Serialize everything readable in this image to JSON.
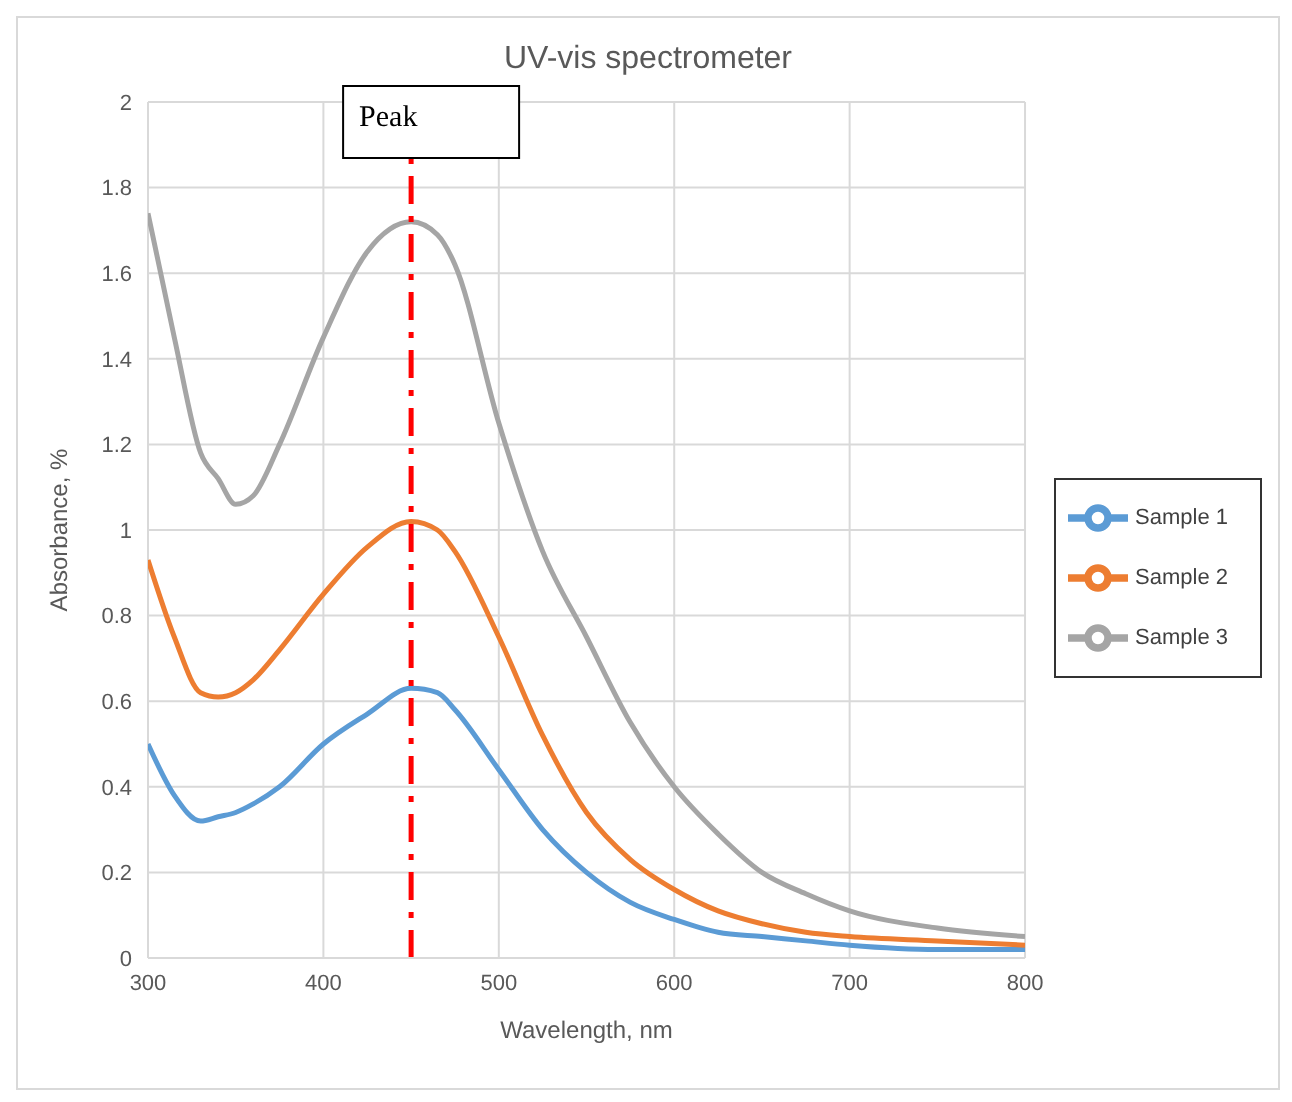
{
  "chart_data": {
    "type": "line",
    "title": "UV-vis spectrometer",
    "xlabel": "Wavelength, nm",
    "ylabel": "Absorbance, %",
    "x": [
      300,
      315,
      330,
      340,
      350,
      360,
      375,
      400,
      425,
      450,
      465,
      475,
      500,
      525,
      550,
      575,
      600,
      625,
      650,
      675,
      700,
      750,
      800
    ],
    "series": [
      {
        "name": "Sample 1",
        "color": "#5b9bd5",
        "values": [
          0.5,
          0.38,
          0.32,
          0.33,
          0.34,
          0.36,
          0.4,
          0.5,
          0.57,
          0.63,
          0.62,
          0.58,
          0.44,
          0.3,
          0.2,
          0.13,
          0.09,
          0.06,
          0.05,
          0.04,
          0.03,
          0.02,
          0.02
        ]
      },
      {
        "name": "Sample 2",
        "color": "#ed7d31",
        "values": [
          0.93,
          0.75,
          0.62,
          0.61,
          0.62,
          0.65,
          0.72,
          0.85,
          0.96,
          1.02,
          1.0,
          0.95,
          0.75,
          0.52,
          0.34,
          0.23,
          0.16,
          0.11,
          0.08,
          0.06,
          0.05,
          0.04,
          0.03
        ]
      },
      {
        "name": "Sample 3",
        "color": "#a5a5a5",
        "values": [
          1.74,
          1.45,
          1.18,
          1.12,
          1.06,
          1.08,
          1.2,
          1.45,
          1.65,
          1.72,
          1.69,
          1.62,
          1.25,
          0.95,
          0.75,
          0.55,
          0.4,
          0.29,
          0.2,
          0.15,
          0.11,
          0.07,
          0.05
        ]
      }
    ],
    "xlim": [
      300,
      800
    ],
    "xticks": [
      300,
      400,
      500,
      600,
      700,
      800
    ],
    "ylim": [
      0,
      2
    ],
    "yticks": [
      0,
      0.2,
      0.4,
      0.6,
      0.8,
      1,
      1.2,
      1.4,
      1.6,
      1.8,
      2
    ],
    "ref_lines": [
      {
        "axis": "x",
        "value": 450,
        "label": "Peak",
        "color": "#ff0000",
        "line_style": "dashed"
      }
    ],
    "grid": true,
    "legend": "right",
    "marker": "none",
    "line_style": "solid"
  }
}
